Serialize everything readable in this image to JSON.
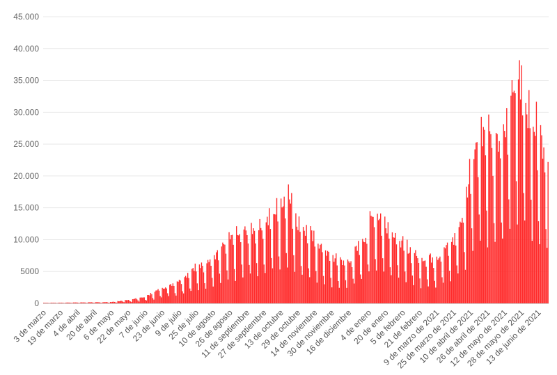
{
  "chart_data": {
    "type": "bar",
    "title": "",
    "xlabel": "",
    "ylabel": "",
    "ylim": [
      0,
      45000
    ],
    "grid": true,
    "bar_color": "#ff2b2b",
    "bar_edge_color": "#d91f1f",
    "ytick_labels": [
      "0",
      "5000",
      "10.000",
      "15.000",
      "20.000",
      "25.000",
      "30.000",
      "35.000",
      "40.000",
      "45.000"
    ],
    "ytick_values": [
      0,
      5000,
      10000,
      15000,
      20000,
      25000,
      30000,
      35000,
      40000,
      45000
    ],
    "xtick_labels": [
      "3 de marzo",
      "19 de marzo",
      "4 de abril",
      "20 de abril",
      "6 de mayo",
      "22 de mayo",
      "7 de junio",
      "23 de junio",
      "9 de julio",
      "25 de julio",
      "10 de agosto",
      "26 de agosto",
      "11 de septiembre",
      "27 de septiembre",
      "13 de octubre",
      "29 de octubre",
      "14 de noviembre",
      "30 de noviembre",
      "16 de diciembre",
      "4 de enero",
      "20 de enero",
      "5 de febrero",
      "21 de febrero",
      "9 de marzo de 2021",
      "25 de marzo de 2021",
      "10 de abril de 2021",
      "26 de abril de 2021",
      "12 de mayo de 2021",
      "28 de mayo de 2021",
      "13 de junio de 2021"
    ],
    "date_start": "2020-03-03",
    "date_end": "2021-06-22",
    "envelope": [
      [
        "2020-03-03",
        80
      ],
      [
        "2020-03-19",
        100
      ],
      [
        "2020-04-04",
        150
      ],
      [
        "2020-04-20",
        180
      ],
      [
        "2020-05-06",
        220
      ],
      [
        "2020-05-22",
        550
      ],
      [
        "2020-06-07",
        1100
      ],
      [
        "2020-06-23",
        2600
      ],
      [
        "2020-07-09",
        3800
      ],
      [
        "2020-07-25",
        6000
      ],
      [
        "2020-08-10",
        7500
      ],
      [
        "2020-08-26",
        10500
      ],
      [
        "2020-09-11",
        12000
      ],
      [
        "2020-09-27",
        13000
      ],
      [
        "2020-10-13",
        16500
      ],
      [
        "2020-10-20",
        17800
      ],
      [
        "2020-10-29",
        13500
      ],
      [
        "2020-11-14",
        10500
      ],
      [
        "2020-11-30",
        7500
      ],
      [
        "2020-12-16",
        6800
      ],
      [
        "2020-12-31",
        11000
      ],
      [
        "2021-01-08",
        15200
      ],
      [
        "2021-01-20",
        13500
      ],
      [
        "2021-02-05",
        9800
      ],
      [
        "2021-02-21",
        7500
      ],
      [
        "2021-03-09",
        7600
      ],
      [
        "2021-03-25",
        10500
      ],
      [
        "2021-04-05",
        16000
      ],
      [
        "2021-04-10",
        23500
      ],
      [
        "2021-04-20",
        29000
      ],
      [
        "2021-05-03",
        25500
      ],
      [
        "2021-05-12",
        28000
      ],
      [
        "2021-05-20",
        38000
      ],
      [
        "2021-05-28",
        36500
      ],
      [
        "2021-06-05",
        32000
      ],
      [
        "2021-06-13",
        28500
      ],
      [
        "2021-06-22",
        24500
      ]
    ]
  }
}
